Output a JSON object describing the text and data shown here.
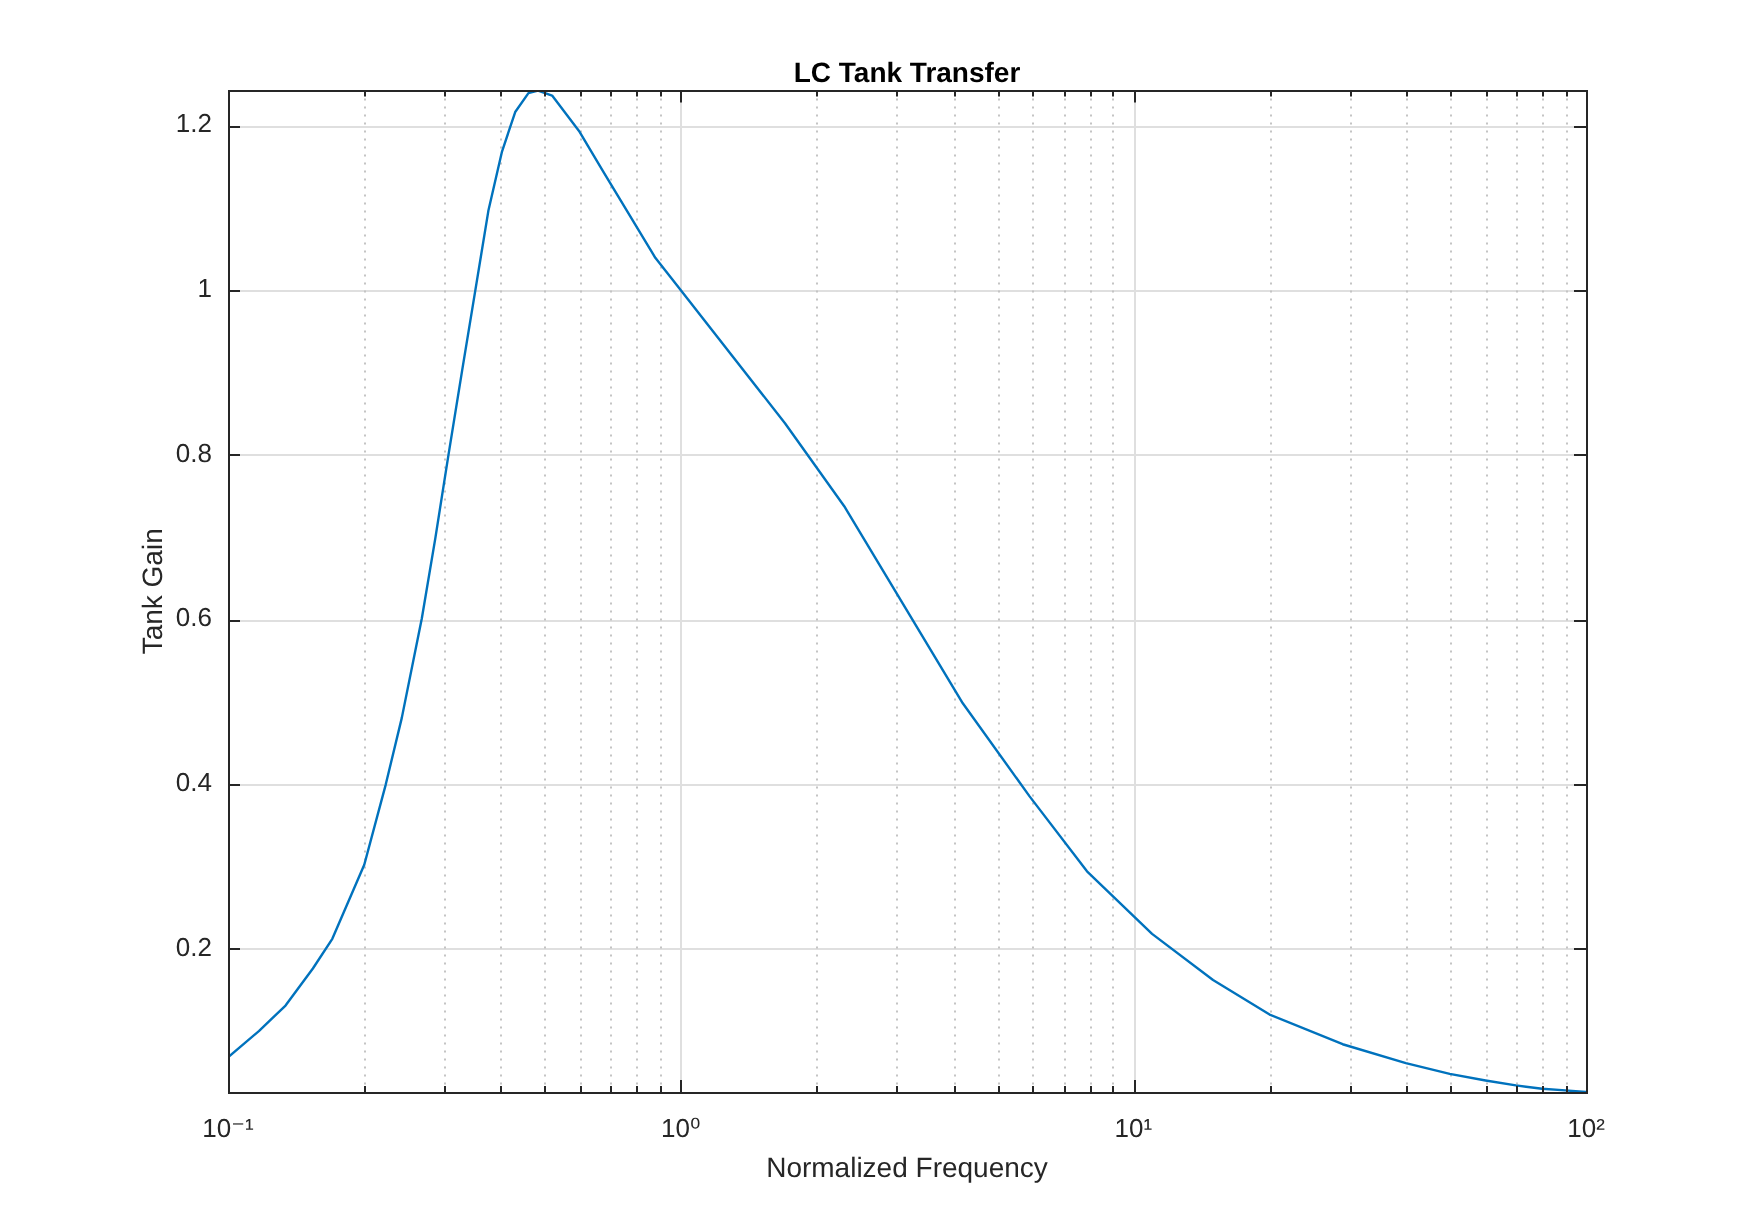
{
  "chart_data": {
    "type": "line",
    "title": "LC Tank Transfer",
    "xlabel": "Normalized Frequency",
    "ylabel": "Tank Gain",
    "log": "x",
    "grid": true,
    "x": [
      0.1,
      0.117,
      0.134,
      0.154,
      0.17,
      0.2,
      0.223,
      0.242,
      0.268,
      0.287,
      0.307,
      0.329,
      0.352,
      0.376,
      0.403,
      0.431,
      0.461,
      0.484,
      0.52,
      0.598,
      0.674,
      0.879,
      0.99,
      1.7,
      2.3,
      4.2,
      5.9,
      7.9,
      11,
      15,
      20,
      29,
      40,
      50,
      60,
      70,
      80,
      90,
      100
    ],
    "series": [
      {
        "color": "#0072bd",
        "values": [
          0.068,
          0.1,
          0.131,
          0.176,
          0.212,
          0.302,
          0.399,
          0.48,
          0.601,
          0.698,
          0.8,
          0.902,
          1.0,
          1.096,
          1.168,
          1.216,
          1.239,
          1.242,
          1.236,
          1.192,
          1.144,
          1.039,
          1.003,
          0.838,
          0.737,
          0.498,
          0.385,
          0.294,
          0.218,
          0.162,
          0.12,
          0.084,
          0.061,
          0.048,
          0.04,
          0.034,
          0.03,
          0.028,
          0.026
        ]
      }
    ],
    "xlim": [
      0.1,
      100
    ],
    "ylim": [
      0.026,
      1.242
    ],
    "xticks": [
      {
        "value": 0.1,
        "label": "10⁻¹"
      },
      {
        "value": 0.2,
        "label": null
      },
      {
        "value": 0.3,
        "label": null
      },
      {
        "value": 0.4,
        "label": null
      },
      {
        "value": 0.5,
        "label": null
      },
      {
        "value": 0.6,
        "label": null
      },
      {
        "value": 0.7,
        "label": null
      },
      {
        "value": 0.8,
        "label": null
      },
      {
        "value": 0.9,
        "label": null
      },
      {
        "value": 1,
        "label": "10⁰"
      },
      {
        "value": 2,
        "label": null
      },
      {
        "value": 3,
        "label": null
      },
      {
        "value": 4,
        "label": null
      },
      {
        "value": 5,
        "label": null
      },
      {
        "value": 6,
        "label": null
      },
      {
        "value": 7,
        "label": null
      },
      {
        "value": 8,
        "label": null
      },
      {
        "value": 9,
        "label": null
      },
      {
        "value": 10,
        "label": "10¹"
      },
      {
        "value": 20,
        "label": null
      },
      {
        "value": 30,
        "label": null
      },
      {
        "value": 40,
        "label": null
      },
      {
        "value": 50,
        "label": null
      },
      {
        "value": 60,
        "label": null
      },
      {
        "value": 70,
        "label": null
      },
      {
        "value": 80,
        "label": null
      },
      {
        "value": 90,
        "label": null
      },
      {
        "value": 100,
        "label": "10²"
      }
    ],
    "yticks": [
      0.2,
      0.4,
      0.6,
      0.8,
      1,
      1.2
    ]
  }
}
